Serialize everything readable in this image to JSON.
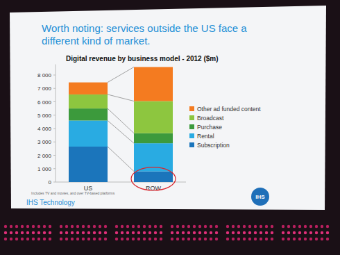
{
  "chart_data": {
    "type": "bar",
    "stacked": true,
    "title": "Digital revenue by business model - 2012 ($m)",
    "annotations": [
      "Worth noting: services outside the US face a",
      "different kind of market.",
      "Includes TV and movies, and over TV-based platforms",
      "IHS Technology",
      "IHS"
    ],
    "categories": [
      "US",
      "ROW"
    ],
    "series": [
      {
        "name": "Subscription",
        "color": "#1b75bb",
        "values": [
          2650,
          800
        ]
      },
      {
        "name": "Rental",
        "color": "#29abe2",
        "values": [
          1950,
          2100
        ]
      },
      {
        "name": "Purchase",
        "color": "#3c9a3c",
        "values": [
          900,
          750
        ]
      },
      {
        "name": "Broadcast",
        "color": "#8dc63f",
        "values": [
          1050,
          2400
        ]
      },
      {
        "name": "Other ad funded content",
        "color": "#f47b20",
        "values": [
          900,
          2550
        ]
      }
    ],
    "ylim": [
      0,
      8800
    ],
    "yticks": [
      0,
      {
        "value": 1000,
        "label": "1 000"
      },
      {
        "value": 2000,
        "label": "2 000"
      },
      {
        "value": 3000,
        "label": "3 000"
      },
      {
        "value": 4000,
        "label": "4 000"
      },
      {
        "value": 5000,
        "label": "5 000"
      },
      {
        "value": 6000,
        "label": "6 000"
      },
      {
        "value": 7000,
        "label": "7 000"
      },
      {
        "value": 8000,
        "label": "8 000"
      }
    ],
    "grid": false,
    "legend": "right"
  }
}
